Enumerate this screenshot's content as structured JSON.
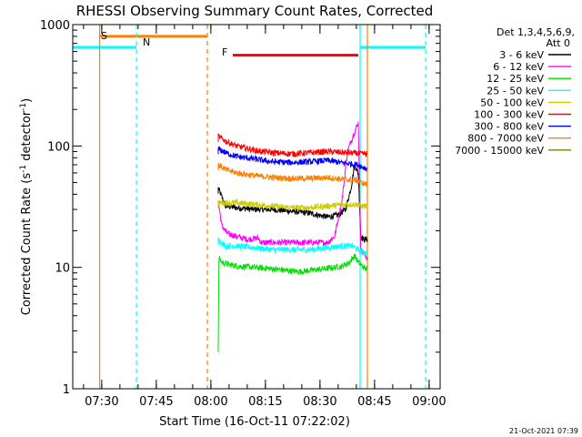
{
  "chart_data": {
    "type": "line",
    "title": "RHESSI Observing Summary Count Rates, Corrected",
    "xlabel": "Start Time (16-Oct-11 07:22:02)",
    "ylabel_main": "Corrected Count Rate (s",
    "ylabel_sup1": "-1",
    "ylabel_mid": " detector",
    "ylabel_sup2": "-1",
    "ylabel_end": ")",
    "ylabel": "Corrected Count Rate (s-1 detector-1)",
    "yscale": "log",
    "ylim": [
      1,
      1000
    ],
    "xlim_minutes": [
      0,
      101
    ],
    "y_ticks": [
      {
        "value": 1,
        "label": "1"
      },
      {
        "value": 10,
        "label": "10"
      },
      {
        "value": 100,
        "label": "100"
      },
      {
        "value": 1000,
        "label": "1000"
      }
    ],
    "x_ticks": [
      {
        "label": "07:30",
        "minutes": 7.97
      },
      {
        "label": "07:45",
        "minutes": 22.97
      },
      {
        "label": "08:00",
        "minutes": 37.97
      },
      {
        "label": "08:15",
        "minutes": 52.97
      },
      {
        "label": "08:30",
        "minutes": 67.97
      },
      {
        "label": "08:45",
        "minutes": 82.97
      },
      {
        "label": "09:00",
        "minutes": 97.97
      }
    ],
    "legend": {
      "placement": "right",
      "header": [
        "Det 1,3,4,5,6,9,",
        "Att 0"
      ],
      "entries": [
        {
          "name": "3 - 6 keV",
          "color": "#000000"
        },
        {
          "name": "6 - 12 keV",
          "color": "#ff00ff"
        },
        {
          "name": "12 - 25 keV",
          "color": "#00dd00"
        },
        {
          "name": "25 - 50 keV",
          "color": "#00ffff"
        },
        {
          "name": "50 - 100 keV",
          "color": "#cccc00"
        },
        {
          "name": "100 - 300 keV",
          "color": "#ff0000"
        },
        {
          "name": "300 - 800 keV",
          "color": "#0000ff"
        },
        {
          "name": "800 - 7000 keV",
          "color": "#ff8000"
        },
        {
          "name": "7000 - 15000 keV",
          "color": "#808000"
        }
      ]
    },
    "annotations": [
      {
        "text": "S",
        "color": "#ff8000"
      },
      {
        "text": "N",
        "color": "#00ffff"
      },
      {
        "text": "F",
        "color": "#ff0000"
      }
    ],
    "intervals": [
      {
        "label": "S",
        "start": 7.4,
        "end": 37.0,
        "y": 800,
        "color": "#ff8000"
      },
      {
        "label": "N",
        "start": 0,
        "end": 17.5,
        "y": 650,
        "color": "#00ffff"
      },
      {
        "label": "N",
        "start": 79.0,
        "end": 97.0,
        "y": 650,
        "color": "#00ffff"
      },
      {
        "label": "F",
        "start": 44.0,
        "end": 78.5,
        "y": 560,
        "color": "#ff0000"
      }
    ],
    "vertical_lines": [
      {
        "minutes": 7.4,
        "color": "#ff8000",
        "style": "solid"
      },
      {
        "minutes": 17.5,
        "color": "#00ffff",
        "style": "dashed"
      },
      {
        "minutes": 37.0,
        "color": "#ff8000",
        "style": "dashed"
      },
      {
        "minutes": 79.0,
        "color": "#00ffff",
        "style": "solid"
      },
      {
        "minutes": 81.0,
        "color": "#ff8000",
        "style": "solid"
      },
      {
        "minutes": 97.0,
        "color": "#00ffff",
        "style": "dashed"
      }
    ],
    "series": [
      {
        "name": "3 - 6 keV",
        "color": "#000000",
        "x": [
          40.0,
          42,
          45,
          50,
          55,
          60,
          65,
          70,
          73,
          75,
          76.5,
          77.5,
          78.5,
          79.2,
          80,
          81.0
        ],
        "y": [
          45,
          32,
          31,
          30,
          30,
          29,
          28,
          26,
          27,
          30,
          45,
          70,
          60,
          18,
          17,
          17
        ]
      },
      {
        "name": "6 - 12 keV",
        "color": "#ff00ff",
        "x": [
          40.0,
          41,
          42.5,
          45,
          48,
          51,
          51.8,
          54,
          58,
          62,
          66,
          70,
          72,
          74,
          75.5,
          77,
          78.5,
          79.2,
          80,
          81.0
        ],
        "y": [
          35,
          22,
          19,
          18,
          17,
          17.5,
          16,
          16,
          16,
          16,
          16,
          16,
          18,
          35,
          90,
          120,
          155,
          14,
          13,
          12
        ]
      },
      {
        "name": "12 - 25 keV",
        "color": "#00dd00",
        "x": [
          40.0,
          40.2,
          41,
          43,
          46,
          50,
          54,
          58,
          62,
          66,
          70,
          74,
          76,
          77.5,
          78.5,
          79.2,
          80,
          81.0
        ],
        "y": [
          2.2,
          12,
          11,
          10.5,
          10.2,
          10,
          9.8,
          9.5,
          9.2,
          9.5,
          9.8,
          10.2,
          11,
          12.5,
          11,
          10.5,
          10,
          9.5
        ]
      },
      {
        "name": "25 - 50 keV",
        "color": "#00ffff",
        "x": [
          40.0,
          42,
          45,
          50,
          55,
          60,
          65,
          70,
          74,
          77,
          79.2,
          81.0
        ],
        "y": [
          17,
          15,
          15,
          14.5,
          14,
          14,
          14,
          14.5,
          15,
          15,
          13.5,
          13
        ]
      },
      {
        "name": "50 - 100 keV",
        "color": "#cccc00",
        "x": [
          40.0,
          42,
          45,
          50,
          55,
          60,
          65,
          70,
          75,
          78.5,
          79.2,
          81.0
        ],
        "y": [
          34,
          34,
          34,
          33,
          32,
          31,
          31,
          32,
          33,
          33,
          32,
          32
        ]
      },
      {
        "name": "100 - 300 keV",
        "color": "#ff0000",
        "x": [
          40.0,
          42,
          45,
          50,
          55,
          60,
          65,
          70,
          75,
          78.5,
          79.2,
          81.0
        ],
        "y": [
          120,
          110,
          100,
          92,
          88,
          86,
          88,
          90,
          88,
          87,
          86,
          86
        ]
      },
      {
        "name": "300 - 800 keV",
        "color": "#0000ff",
        "x": [
          40.0,
          42,
          45,
          50,
          55,
          60,
          65,
          70,
          75,
          78.5,
          79.2,
          81.0
        ],
        "y": [
          95,
          88,
          82,
          78,
          74,
          73,
          74,
          76,
          72,
          70,
          68,
          65
        ]
      },
      {
        "name": "800 - 7000 keV",
        "color": "#ff8000",
        "x": [
          40.0,
          42,
          45,
          50,
          55,
          60,
          65,
          70,
          75,
          78.5,
          79.2,
          81.0
        ],
        "y": [
          70,
          64,
          60,
          57,
          55,
          54,
          54,
          55,
          53,
          52,
          50,
          48
        ]
      }
    ]
  },
  "footer": {
    "timestamp": "21-Oct-2021 07:39"
  }
}
